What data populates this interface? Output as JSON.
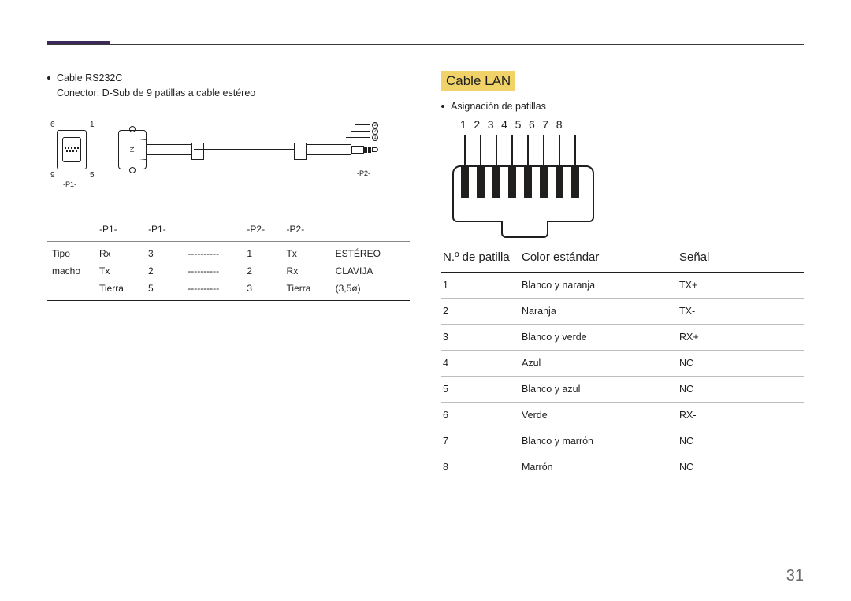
{
  "pageNumber": "31",
  "left": {
    "bullet": "Cable RS232C",
    "subline": "Conector: D-Sub de 9 patillas a cable estéreo",
    "diagram": {
      "nums": {
        "topLeft": "6",
        "topRight": "1",
        "botLeft": "9",
        "botRight": "5"
      },
      "p1": "-P1-",
      "p2": "-P2-",
      "inLabel": "IN",
      "jackNums": [
        "3",
        "2",
        "1"
      ]
    },
    "table": {
      "headers": [
        "-P1-",
        "-P1-",
        "",
        "-P2-",
        "-P2-",
        ""
      ],
      "col0": [
        "Tipo",
        "macho",
        ""
      ],
      "rows": [
        [
          "Rx",
          "3",
          "----------",
          "1",
          "Tx",
          "ESTÉREO"
        ],
        [
          "Tx",
          "2",
          "----------",
          "2",
          "Rx",
          "CLAVIJA"
        ],
        [
          "Tierra",
          "5",
          "----------",
          "3",
          "Tierra",
          "(3,5ø)"
        ]
      ]
    }
  },
  "right": {
    "heading": "Cable LAN",
    "bullet": "Asignación de patillas",
    "pins": [
      "1",
      "2",
      "3",
      "4",
      "5",
      "6",
      "7",
      "8"
    ],
    "table": {
      "headers": [
        "N.º de patilla",
        "Color estándar",
        "Señal"
      ],
      "rows": [
        [
          "1",
          "Blanco y naranja",
          "TX+"
        ],
        [
          "2",
          "Naranja",
          "TX-"
        ],
        [
          "3",
          "Blanco y verde",
          "RX+"
        ],
        [
          "4",
          "Azul",
          "NC"
        ],
        [
          "5",
          "Blanco y azul",
          "NC"
        ],
        [
          "6",
          "Verde",
          "RX-"
        ],
        [
          "7",
          "Blanco y marrón",
          "NC"
        ],
        [
          "8",
          "Marrón",
          "NC"
        ]
      ]
    }
  }
}
